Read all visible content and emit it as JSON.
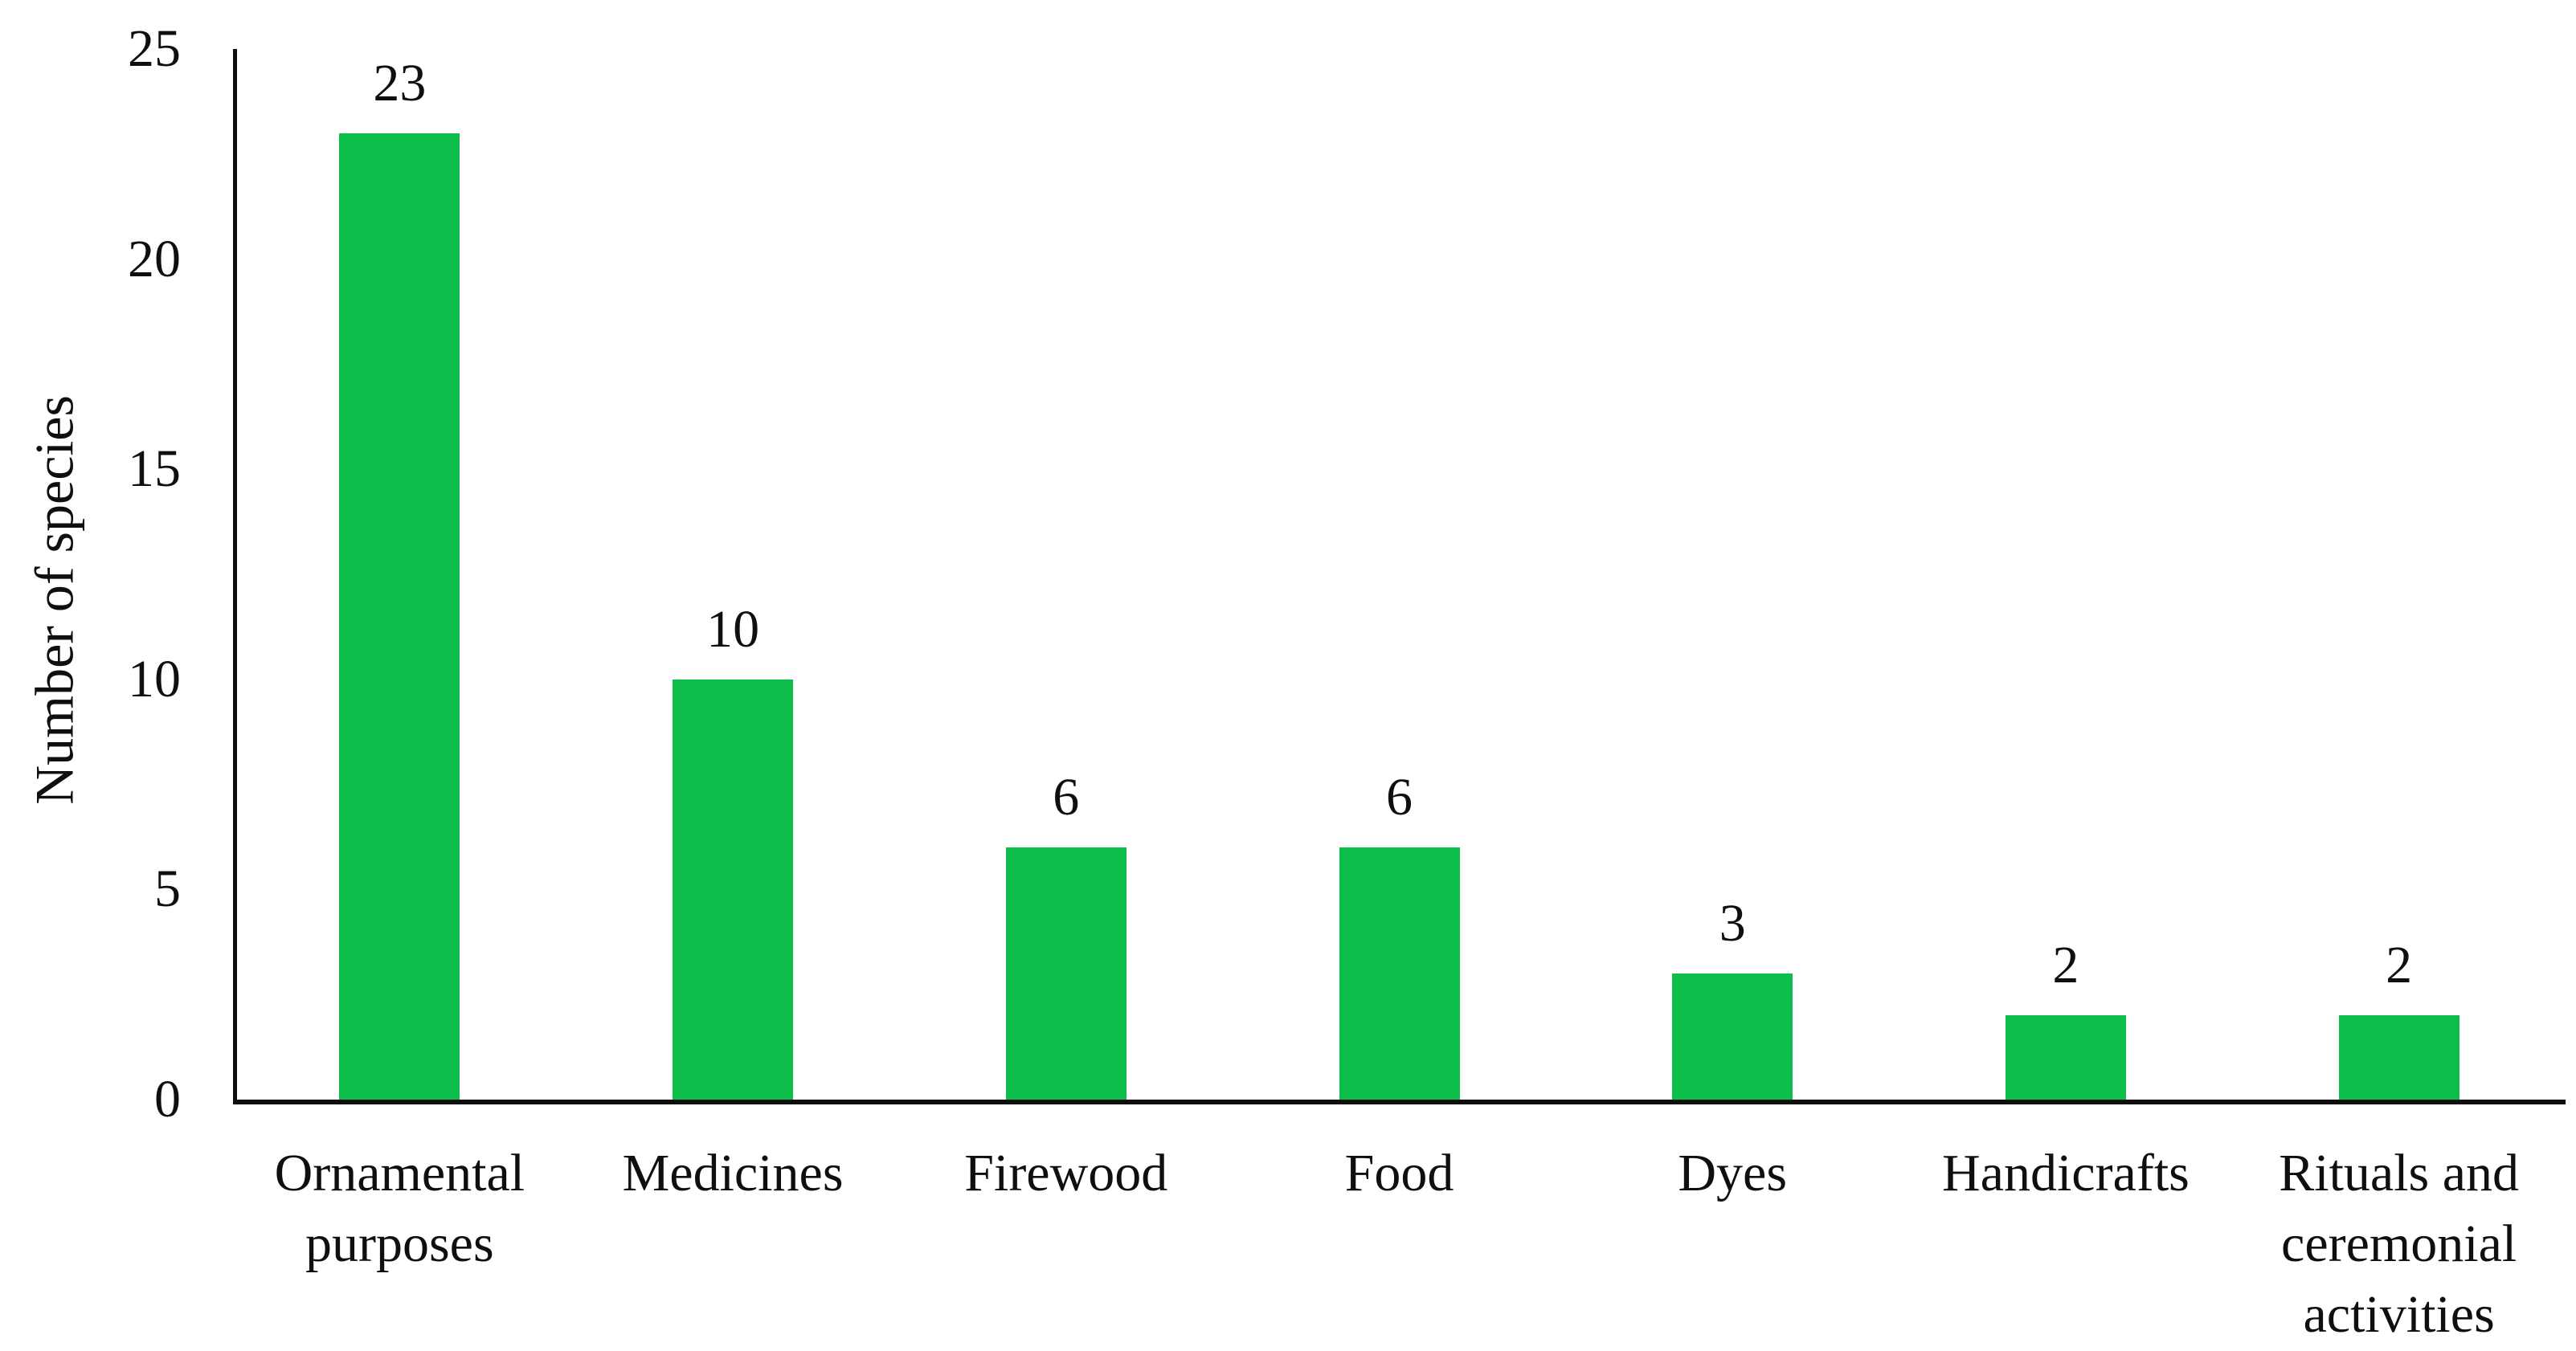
{
  "figure": {
    "background_color": "#ffffff",
    "text_color": "#0f0f0f"
  },
  "chart_data": {
    "type": "bar",
    "title": "",
    "xlabel": "",
    "ylabel": "Number of species",
    "categories": [
      "Ornamental\npurposes",
      "Medicines",
      "Firewood",
      "Food",
      "Dyes",
      "Handicrafts",
      "Rituals and\nceremonial\nactivities"
    ],
    "values": [
      23,
      10,
      6,
      6,
      3,
      2,
      2
    ],
    "data_labels": [
      "23",
      "10",
      "6",
      "6",
      "3",
      "2",
      "2"
    ],
    "ylim": [
      0,
      25
    ],
    "yticks": [
      0,
      5,
      10,
      15,
      20,
      25
    ],
    "bar_color": "#0ebe4a",
    "axis_color": "#0d0d0d",
    "grid": "off",
    "legend": "none",
    "data_labels_position": "above-bars"
  }
}
